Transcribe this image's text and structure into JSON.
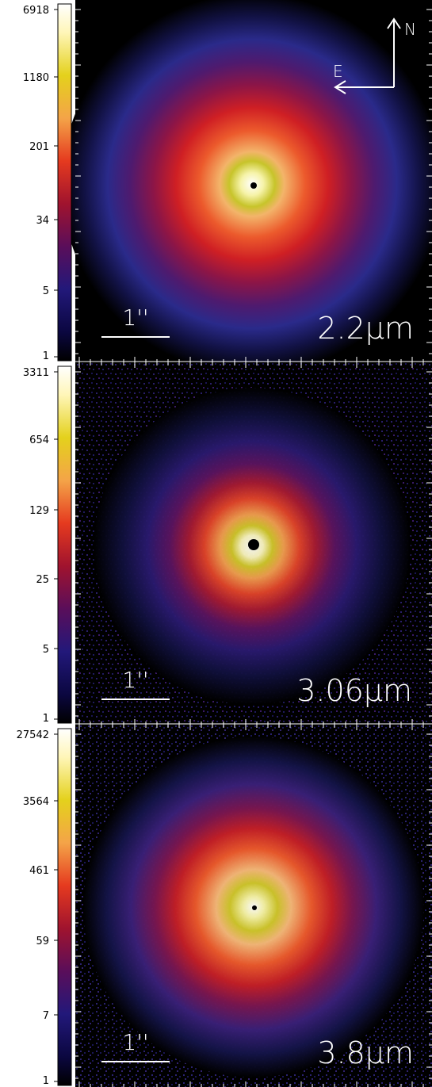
{
  "panels": [
    {
      "colorbar_labels": [
        "6918",
        "1180",
        "201",
        "34",
        "5",
        "1"
      ],
      "scale_label": "1''",
      "wavelength_label": "2.2μm",
      "compass": {
        "north": "N",
        "east": "E"
      }
    },
    {
      "colorbar_labels": [
        "3311",
        "654",
        "129",
        "25",
        "5",
        "1"
      ],
      "scale_label": "1''",
      "wavelength_label": "3.06μm"
    },
    {
      "colorbar_labels": [
        "27542",
        "3564",
        "461",
        "59",
        "7",
        "1"
      ],
      "scale_label": "1''",
      "wavelength_label": "3.8μm"
    }
  ],
  "colors": {
    "background": "#000000",
    "colormap": [
      "#ffffff",
      "#fff4a0",
      "#e2d21a",
      "#f29a3a",
      "#e8331e",
      "#8a0e33",
      "#4a0d58",
      "#1c166f",
      "#0a0636",
      "#000000"
    ]
  }
}
